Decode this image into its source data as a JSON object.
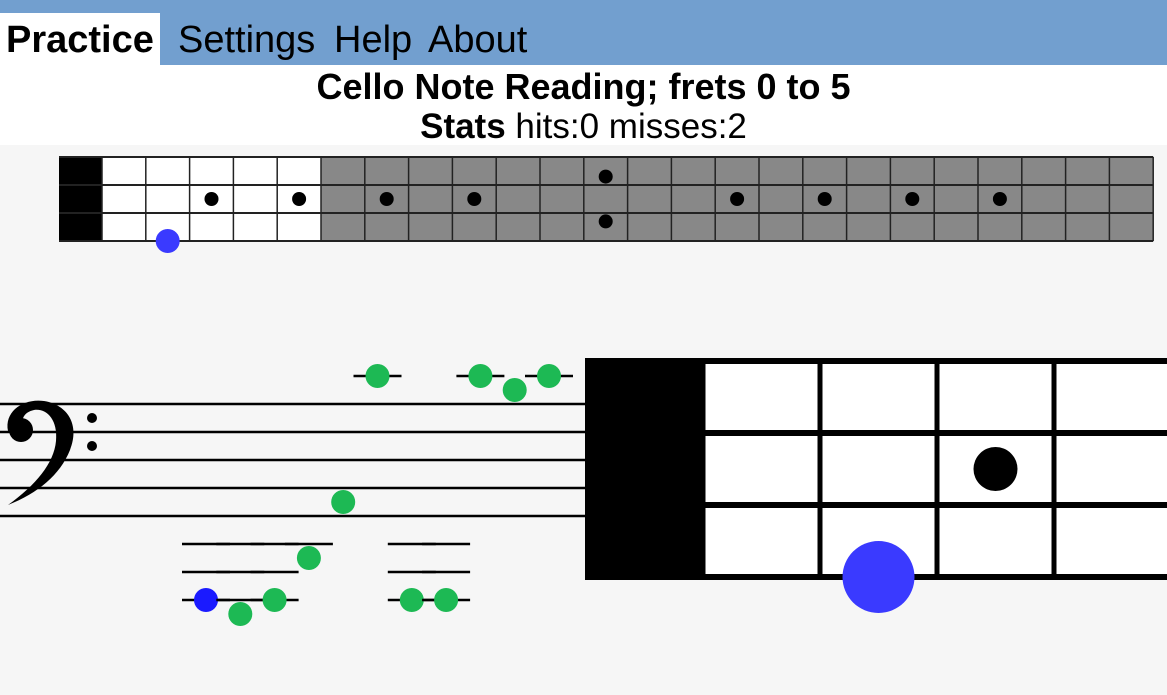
{
  "menu": {
    "tabs": [
      {
        "label": "Practice",
        "active": true
      },
      {
        "label": "Settings",
        "active": false
      },
      {
        "label": "Help",
        "active": false
      },
      {
        "label": "About",
        "active": false
      }
    ]
  },
  "header": {
    "title": "Cello Note Reading; frets 0 to 5",
    "stats_label": "Stats",
    "stats_value": "hits:0 misses:2"
  },
  "colors": {
    "menubar": "#729fcf",
    "correct_note": "#1db954",
    "current_note": "#1a1aff",
    "highlight": "#3a3aff",
    "fret_active": "#ffffff",
    "fret_inactive": "#888888"
  },
  "clef": "bass-clef",
  "fretboard": {
    "strings": 4,
    "active_frets": 5,
    "total_frets": 24,
    "inlay_frets": [
      3,
      5,
      7,
      9,
      12,
      15,
      17,
      19,
      21
    ],
    "double_inlay_fret": 12,
    "target": {
      "string": 4,
      "fret": 2
    }
  },
  "zoom_fretboard": {
    "inlay": {
      "string": 2,
      "fret": 3
    },
    "target": {
      "string": 4,
      "fret": 2
    }
  },
  "notes": [
    {
      "step": -6,
      "status": "current"
    },
    {
      "step": -7,
      "status": "correct"
    },
    {
      "step": -6,
      "status": "correct"
    },
    {
      "step": -3,
      "status": "correct"
    },
    {
      "step": 1,
      "status": "correct"
    },
    {
      "step": 10,
      "status": "correct"
    },
    {
      "step": -6,
      "status": "correct"
    },
    {
      "step": -6,
      "status": "correct"
    },
    {
      "step": 10,
      "status": "correct"
    },
    {
      "step": 9,
      "status": "correct"
    },
    {
      "step": 10,
      "status": "correct"
    }
  ]
}
